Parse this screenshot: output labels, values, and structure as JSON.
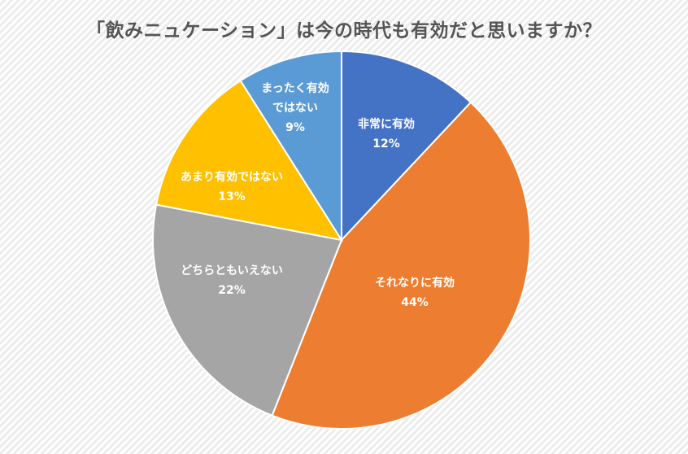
{
  "chart_data": {
    "type": "pie",
    "title": "「飲みニュケーション」は今の時代も有効だと思いますか？",
    "categories": [
      "非常に有効",
      "それなりに有効",
      "どちらともいえない",
      "あまり有効ではない",
      "まったく有効ではない"
    ],
    "values": [
      12,
      44,
      22,
      13,
      9
    ],
    "value_labels": [
      "12%",
      "44%",
      "22%",
      "13%",
      "9%"
    ],
    "label_lines": [
      [
        "非常に有効"
      ],
      [
        "それなりに有効"
      ],
      [
        "どちらともいえない"
      ],
      [
        "あまり有効ではない"
      ],
      [
        "まったく有効",
        "ではない"
      ]
    ],
    "colors": [
      "#4472c4",
      "#ed7d31",
      "#a5a5a5",
      "#ffc000",
      "#5b9bd5"
    ],
    "legend": "none",
    "start_angle": "12 o'clock, clockwise"
  }
}
